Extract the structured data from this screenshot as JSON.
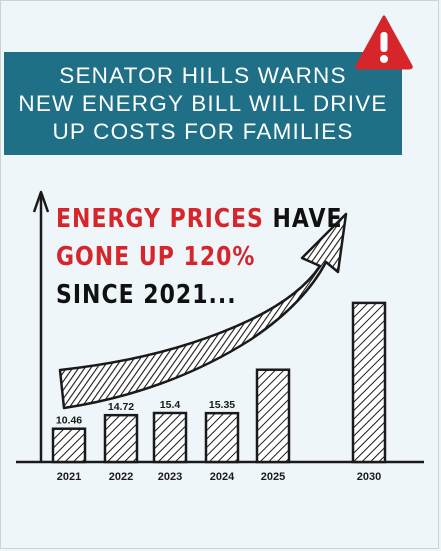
{
  "banner": {
    "line1": "SENATOR HILLS WARNS",
    "line2": "NEW ENERGY BILL WILL DRIVE",
    "line3": "UP COSTS FOR FAMILIES"
  },
  "headline": {
    "part1_red": "ENERGY PRICES",
    "part1_black": " HAVE",
    "part2_red": "GONE UP 120%",
    "part3_black": "SINCE 2021..."
  },
  "icons": {
    "warning": "warning-triangle-icon",
    "trend": "upward-trend-arrow"
  },
  "colors": {
    "banner_bg": "#1f6f86",
    "accent_red": "#d6262b",
    "ink": "#1a1a1a",
    "background": "#eef6fa"
  },
  "chart_data": {
    "type": "bar",
    "categories": [
      "2021",
      "2022",
      "2023",
      "2024",
      "2025",
      "2030"
    ],
    "values": [
      10.46,
      14.72,
      15.4,
      15.35,
      29,
      50
    ],
    "data_labels": [
      "10.46",
      "14.72",
      "15.4",
      "15.35",
      "",
      ""
    ],
    "title": "",
    "xlabel": "",
    "ylabel": "",
    "ylim": [
      0,
      55
    ],
    "grid": false
  }
}
